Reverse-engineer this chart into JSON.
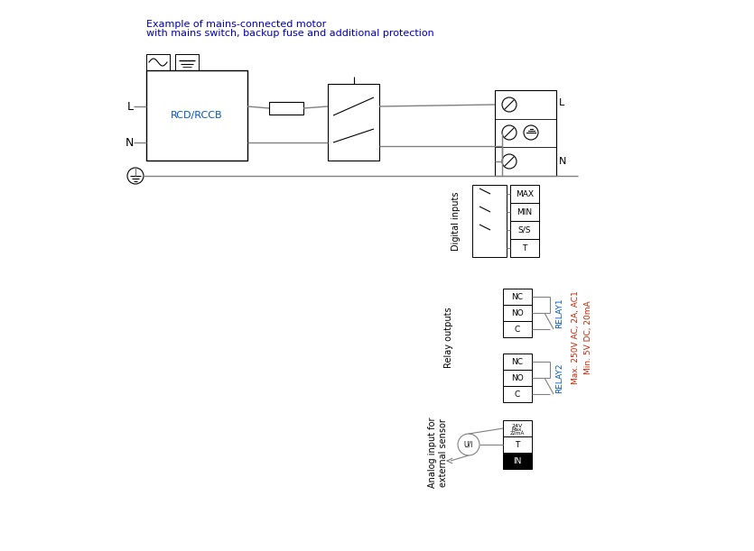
{
  "title_line1": "Example of mains-connected motor",
  "title_line2": "with mains switch, backup fuse and additional protection",
  "title_color": "#0000bb",
  "line_color": "#808080",
  "box_color": "#000000",
  "label_color_blue": "#0055cc",
  "label_color_red": "#cc2200",
  "bg_color": "#ffffff",
  "rcd_label": "RCD/RCCB",
  "relay1_label": "RELAY1",
  "relay2_label": "RELAY2",
  "max_label": "Max. 250V AC, 2A, AC1",
  "min_label": "Min. 5V DC, 20mA",
  "digital_inputs_label": "Digital inputs",
  "relay_outputs_label": "Relay outputs",
  "analog_label": "Analog input for\nexternal sensor",
  "L_label": "L",
  "N_label": "N",
  "terminal_L": "L",
  "terminal_N": "N"
}
